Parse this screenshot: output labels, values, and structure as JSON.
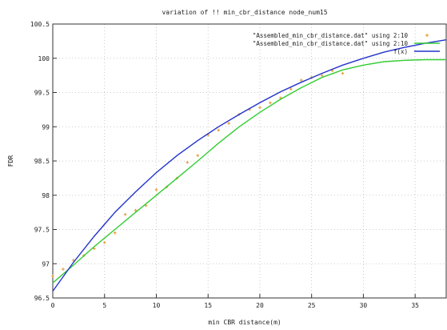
{
  "chart_data": {
    "type": "line",
    "title": "variation of !! min_cbr_distance node_num15",
    "xlabel": "min CBR distance(m)",
    "ylabel": "FDR",
    "xlim": [
      0,
      38
    ],
    "ylim": [
      96.5,
      100.5
    ],
    "x_ticks": [
      0,
      5,
      10,
      15,
      20,
      25,
      30,
      35
    ],
    "y_ticks": [
      96.5,
      97,
      97.5,
      98,
      98.5,
      99,
      99.5,
      100,
      100.5
    ],
    "y_tick_labels": [
      "96.5",
      "97",
      "97.5",
      "98",
      "98.5",
      "99",
      "99.5",
      "100",
      "100.5"
    ],
    "grid": true,
    "legend_position": "top-right",
    "series": [
      {
        "name": "\"Assembled_min_cbr_distance.dat\" using 2:10",
        "kind": "points",
        "color": "#e8a040",
        "x": [
          0,
          1,
          2,
          3,
          4,
          5,
          6,
          7,
          8,
          9,
          10,
          11,
          12,
          13,
          14,
          15,
          16,
          17,
          18,
          19,
          20,
          21,
          22,
          23,
          24,
          25,
          26,
          27,
          28
        ],
        "y": [
          96.82,
          96.92,
          97.05,
          97.12,
          97.22,
          97.31,
          97.45,
          97.72,
          97.78,
          97.85,
          98.08,
          98.12,
          98.25,
          98.48,
          98.58,
          98.88,
          98.95,
          99.05,
          99.18,
          99.25,
          99.28,
          99.35,
          99.42,
          99.55,
          99.68,
          99.72,
          99.75,
          99.82,
          99.78
        ]
      },
      {
        "name": "\"Assembled_min_cbr_distance.dat\" using 2:10",
        "kind": "line",
        "color": "#33cc33",
        "x": [
          0,
          2,
          4,
          6,
          8,
          10,
          12,
          14,
          16,
          18,
          20,
          22,
          24,
          26,
          28,
          30,
          32,
          34,
          36,
          38
        ],
        "y": [
          96.72,
          96.98,
          97.25,
          97.5,
          97.75,
          98.0,
          98.25,
          98.5,
          98.76,
          99.0,
          99.21,
          99.4,
          99.57,
          99.72,
          99.83,
          99.9,
          99.95,
          99.97,
          99.98,
          99.98
        ]
      },
      {
        "name": "f(x)",
        "kind": "line",
        "color": "#2233cc",
        "x": [
          0,
          2,
          4,
          6,
          8,
          10,
          12,
          14,
          16,
          18,
          20,
          22,
          24,
          26,
          28,
          30,
          32,
          34,
          36,
          38
        ],
        "y": [
          96.6,
          97.02,
          97.4,
          97.75,
          98.05,
          98.33,
          98.58,
          98.8,
          99.0,
          99.18,
          99.35,
          99.51,
          99.65,
          99.78,
          99.9,
          100.0,
          100.09,
          100.16,
          100.22,
          100.27
        ]
      }
    ]
  }
}
